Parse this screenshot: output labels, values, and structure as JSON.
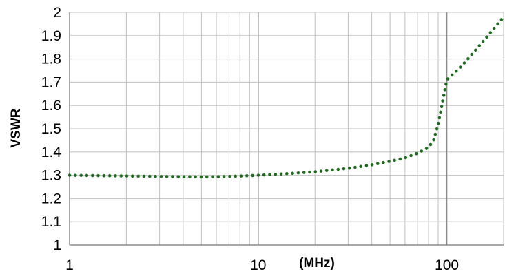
{
  "chart_data": {
    "type": "line",
    "title": "",
    "xlabel": "(MHz)",
    "ylabel": "VSWR",
    "x_scale": "log",
    "xlim": [
      1,
      200
    ],
    "ylim": [
      1,
      2
    ],
    "x_ticks": [
      1,
      10,
      100
    ],
    "x_tick_labels": [
      "1",
      "10",
      "100"
    ],
    "y_ticks": [
      1,
      1.1,
      1.2,
      1.3,
      1.4,
      1.5,
      1.6,
      1.7,
      1.8,
      1.9,
      2
    ],
    "y_tick_labels": [
      "1",
      "1.1",
      "1.2",
      "1.3",
      "1.4",
      "1.5",
      "1.6",
      "1.7",
      "1.8",
      "1.9",
      "2"
    ],
    "grid": true,
    "legend": "none",
    "line_style": "dotted",
    "colors": {
      "series": "#1e6b1e",
      "grid": "#c0c0c0",
      "major_grid": "#8c8c8c",
      "axis": "#8c8c8c"
    },
    "series": [
      {
        "x": [
          1,
          2,
          3,
          5,
          7,
          10,
          15,
          20,
          30,
          40,
          50,
          60,
          70,
          80,
          85,
          90,
          100,
          120,
          150,
          200
        ],
        "y": [
          1.3,
          1.297,
          1.295,
          1.293,
          1.295,
          1.3,
          1.308,
          1.315,
          1.33,
          1.345,
          1.36,
          1.375,
          1.395,
          1.42,
          1.45,
          1.52,
          1.71,
          1.77,
          1.86,
          1.98
        ]
      }
    ]
  }
}
